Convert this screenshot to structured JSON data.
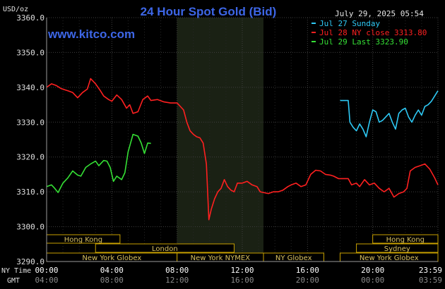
{
  "header": {
    "title": "24 Hour Spot Gold (Bid)",
    "unit": "USD/oz",
    "site": "www.kitco.com",
    "timestamp": "July 29, 2025 05:54"
  },
  "legend": [
    {
      "label": "Jul 27 Sunday",
      "color": "#2ec9f5"
    },
    {
      "label": "Jul 28 NY close 3313.80",
      "color": "#ff2020"
    },
    {
      "label": "Jul 29 Last 3323.90",
      "color": "#35e035"
    }
  ],
  "chart_data": {
    "type": "line",
    "title": "24 Hour Spot Gold (Bid)",
    "ylabel": "USD/oz",
    "ylim": [
      3290,
      3360
    ],
    "yticks": [
      3290,
      3300,
      3310,
      3320,
      3330,
      3340,
      3350,
      3360
    ],
    "xlim": [
      0,
      24
    ],
    "xticks_ny": [
      "00:00",
      "04:00",
      "08:00",
      "12:00",
      "16:00",
      "20:00",
      "23:59"
    ],
    "xticks_gmt": [
      "04:00",
      "08:00",
      "12:00",
      "16:00",
      "20:00",
      "00:00",
      "03:59"
    ],
    "xtick_hours": [
      0,
      4,
      8,
      12,
      16,
      20,
      24
    ],
    "axis_row_labels": {
      "ny": "NY Time",
      "gmt": "GMT"
    },
    "shaded_session_hours": [
      8,
      13.3
    ],
    "series": [
      {
        "name": "Jul 28 NY close 3313.80",
        "color": "#ff2020",
        "points": [
          [
            0,
            3340
          ],
          [
            0.3,
            3341
          ],
          [
            0.6,
            3340.5
          ],
          [
            0.9,
            3339.6
          ],
          [
            1.3,
            3339
          ],
          [
            1.6,
            3338.5
          ],
          [
            1.9,
            3337
          ],
          [
            2.2,
            3338.5
          ],
          [
            2.5,
            3339.5
          ],
          [
            2.7,
            3342.5
          ],
          [
            3.0,
            3341
          ],
          [
            3.3,
            3339
          ],
          [
            3.5,
            3337.5
          ],
          [
            3.8,
            3336.5
          ],
          [
            4.0,
            3336
          ],
          [
            4.3,
            3337.8
          ],
          [
            4.6,
            3336.5
          ],
          [
            4.9,
            3334
          ],
          [
            5.1,
            3335
          ],
          [
            5.3,
            3332.5
          ],
          [
            5.6,
            3333
          ],
          [
            5.9,
            3336.5
          ],
          [
            6.2,
            3337.5
          ],
          [
            6.4,
            3336.2
          ],
          [
            6.8,
            3336.5
          ],
          [
            7.2,
            3335.8
          ],
          [
            7.6,
            3335.5
          ],
          [
            8.0,
            3335.5
          ],
          [
            8.2,
            3334.5
          ],
          [
            8.4,
            3333.5
          ],
          [
            8.6,
            3330
          ],
          [
            8.8,
            3327.5
          ],
          [
            9.0,
            3326.5
          ],
          [
            9.2,
            3325.8
          ],
          [
            9.4,
            3325.5
          ],
          [
            9.6,
            3324
          ],
          [
            9.8,
            3318
          ],
          [
            9.95,
            3302
          ],
          [
            10.1,
            3305
          ],
          [
            10.3,
            3308
          ],
          [
            10.5,
            3310
          ],
          [
            10.7,
            3311
          ],
          [
            10.9,
            3313.5
          ],
          [
            11.1,
            3311.5
          ],
          [
            11.3,
            3310.5
          ],
          [
            11.5,
            3310
          ],
          [
            11.7,
            3312.5
          ],
          [
            12.0,
            3312.5
          ],
          [
            12.3,
            3313
          ],
          [
            12.6,
            3312
          ],
          [
            12.9,
            3311.5
          ],
          [
            13.1,
            3310
          ],
          [
            13.3,
            3309.8
          ],
          [
            13.6,
            3309.5
          ],
          [
            13.9,
            3310
          ],
          [
            14.2,
            3310
          ],
          [
            14.5,
            3310.5
          ],
          [
            14.8,
            3311.5
          ],
          [
            15.0,
            3312
          ],
          [
            15.3,
            3312.5
          ],
          [
            15.6,
            3311.5
          ],
          [
            15.9,
            3312
          ],
          [
            16.2,
            3315
          ],
          [
            16.5,
            3316.2
          ],
          [
            16.8,
            3316
          ],
          [
            17.1,
            3315
          ],
          [
            17.4,
            3314.8
          ],
          [
            17.6,
            3314.5
          ],
          [
            17.9,
            3313.8
          ],
          [
            18.2,
            3313.8
          ],
          [
            18.5,
            3313.8
          ],
          [
            18.7,
            3312
          ],
          [
            19.0,
            3312.5
          ],
          [
            19.2,
            3311.5
          ],
          [
            19.5,
            3313.5
          ],
          [
            19.8,
            3312
          ],
          [
            20.1,
            3312.5
          ],
          [
            20.4,
            3311
          ],
          [
            20.7,
            3310
          ],
          [
            21.0,
            3311
          ],
          [
            21.3,
            3308.5
          ],
          [
            21.6,
            3309.5
          ],
          [
            21.9,
            3310
          ],
          [
            22.1,
            3311
          ],
          [
            22.3,
            3316
          ],
          [
            22.6,
            3317
          ],
          [
            22.9,
            3317.5
          ],
          [
            23.2,
            3318
          ],
          [
            23.5,
            3316.5
          ],
          [
            23.8,
            3314
          ],
          [
            24.0,
            3312
          ]
        ]
      },
      {
        "name": "Jul 29 Last 3323.90",
        "color": "#35e035",
        "points": [
          [
            0,
            3311.5
          ],
          [
            0.3,
            3312
          ],
          [
            0.5,
            3311
          ],
          [
            0.7,
            3309.8
          ],
          [
            1.0,
            3312.5
          ],
          [
            1.3,
            3314
          ],
          [
            1.6,
            3316
          ],
          [
            1.9,
            3314.8
          ],
          [
            2.1,
            3314.5
          ],
          [
            2.4,
            3317
          ],
          [
            2.7,
            3318
          ],
          [
            3.0,
            3318.8
          ],
          [
            3.2,
            3317.5
          ],
          [
            3.5,
            3319
          ],
          [
            3.7,
            3318.8
          ],
          [
            3.9,
            3317
          ],
          [
            4.1,
            3313
          ],
          [
            4.3,
            3314.5
          ],
          [
            4.6,
            3313.5
          ],
          [
            4.8,
            3315.5
          ],
          [
            5.0,
            3321.5
          ],
          [
            5.3,
            3326.5
          ],
          [
            5.6,
            3326
          ],
          [
            5.8,
            3324
          ],
          [
            6.0,
            3321
          ],
          [
            6.2,
            3324
          ],
          [
            6.4,
            3323.9
          ]
        ]
      },
      {
        "name": "Jul 27 Sunday",
        "color": "#2ec9f5",
        "points": [
          [
            18.0,
            3336.2
          ],
          [
            18.5,
            3336.2
          ],
          [
            18.6,
            3330
          ],
          [
            18.8,
            3328.5
          ],
          [
            19.0,
            3327.5
          ],
          [
            19.2,
            3329.5
          ],
          [
            19.4,
            3328
          ],
          [
            19.6,
            3325.8
          ],
          [
            19.8,
            3330
          ],
          [
            20.0,
            3333.5
          ],
          [
            20.2,
            3333
          ],
          [
            20.4,
            3330
          ],
          [
            20.6,
            3330.5
          ],
          [
            20.8,
            3331.5
          ],
          [
            21.0,
            3332.5
          ],
          [
            21.2,
            3330
          ],
          [
            21.4,
            3328
          ],
          [
            21.6,
            3332.5
          ],
          [
            21.8,
            3333.5
          ],
          [
            22.0,
            3334
          ],
          [
            22.2,
            3331.5
          ],
          [
            22.4,
            3330
          ],
          [
            22.6,
            3332
          ],
          [
            22.8,
            3333.5
          ],
          [
            23.0,
            3332
          ],
          [
            23.2,
            3334.5
          ],
          [
            23.4,
            3335
          ],
          [
            23.6,
            3336
          ],
          [
            23.8,
            3337.5
          ],
          [
            24.0,
            3339
          ]
        ]
      }
    ],
    "sessions": [
      {
        "name": "Hong Kong",
        "row": 0,
        "start": 0,
        "end": 4.5
      },
      {
        "name": "Hong Kong",
        "row": 0,
        "start": 20.0,
        "end": 24.0
      },
      {
        "name": "London",
        "row": 1,
        "start": 3.0,
        "end": 11.5
      },
      {
        "name": "Sydney",
        "row": 1,
        "start": 19.0,
        "end": 24.0
      },
      {
        "name": "New York Globex",
        "row": 2,
        "start": 0,
        "end": 8.0
      },
      {
        "name": "New York NYMEX",
        "row": 2,
        "start": 8.0,
        "end": 13.3
      },
      {
        "name": "NY Globex",
        "row": 2,
        "start": 13.3,
        "end": 17.0
      },
      {
        "name": "New York Globex",
        "row": 2,
        "start": 18.0,
        "end": 24.0
      }
    ]
  }
}
